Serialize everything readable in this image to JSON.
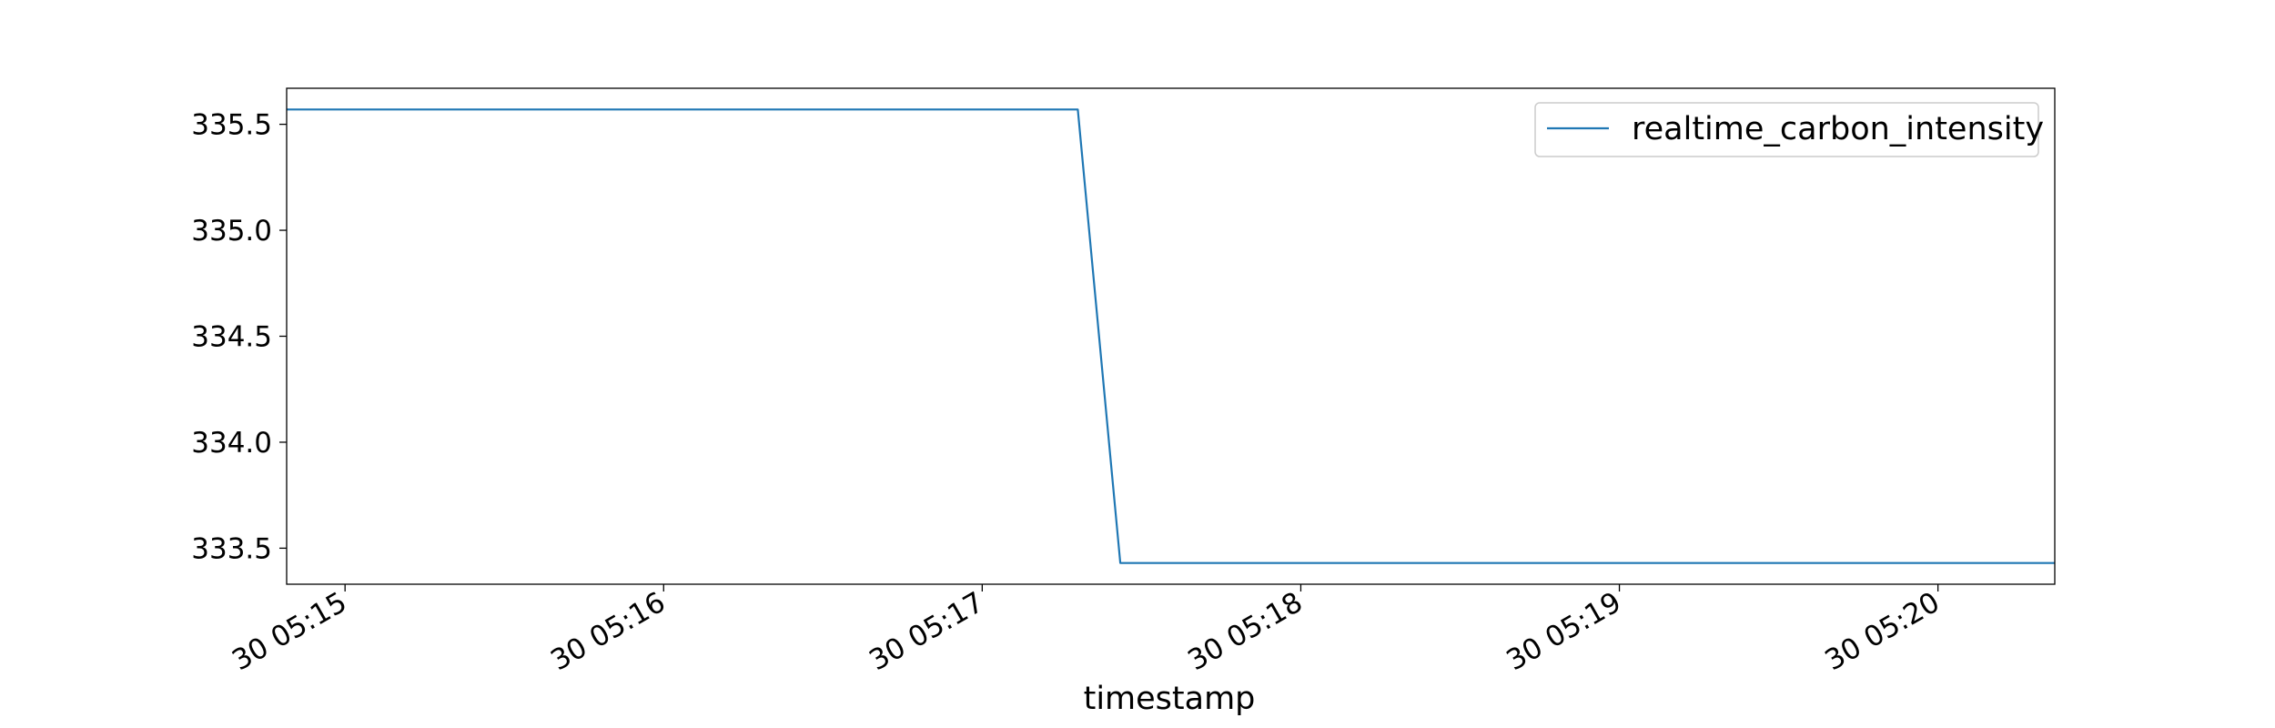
{
  "chart_data": {
    "type": "line",
    "title": "",
    "xlabel": "timestamp",
    "ylabel": "",
    "series": [
      {
        "name": "realtime_carbon_intensity",
        "color": "#1f77b4",
        "x": [
          "30 05:14:49",
          "30 05:17:18",
          "30 05:17:26",
          "30 05:20:22"
        ],
        "y": [
          335.57,
          335.57,
          333.43,
          333.43
        ]
      }
    ],
    "xlim": [
      "30 05:14:49",
      "30 05:20:22"
    ],
    "ylim": [
      333.33,
      335.67
    ],
    "x_ticks": [
      "30 05:15",
      "30 05:16",
      "30 05:17",
      "30 05:18",
      "30 05:19",
      "30 05:20"
    ],
    "y_ticks": [
      "333.5",
      "334.0",
      "334.5",
      "335.0",
      "335.5"
    ],
    "legend_position": "top-right",
    "grid": false
  }
}
